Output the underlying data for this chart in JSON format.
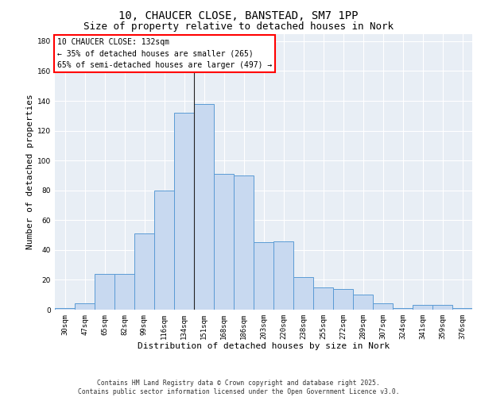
{
  "title1": "10, CHAUCER CLOSE, BANSTEAD, SM7 1PP",
  "title2": "Size of property relative to detached houses in Nork",
  "xlabel": "Distribution of detached houses by size in Nork",
  "ylabel": "Number of detached properties",
  "categories": [
    "30sqm",
    "47sqm",
    "65sqm",
    "82sqm",
    "99sqm",
    "116sqm",
    "134sqm",
    "151sqm",
    "168sqm",
    "186sqm",
    "203sqm",
    "220sqm",
    "238sqm",
    "255sqm",
    "272sqm",
    "289sqm",
    "307sqm",
    "324sqm",
    "341sqm",
    "359sqm",
    "376sqm"
  ],
  "values": [
    1,
    4,
    24,
    24,
    51,
    80,
    132,
    138,
    91,
    90,
    45,
    46,
    22,
    15,
    14,
    10,
    4,
    1,
    3,
    3,
    1
  ],
  "bar_color": "#c8d9f0",
  "bar_edge_color": "#5b9bd5",
  "vline_x": 6.5,
  "annotation_text": "10 CHAUCER CLOSE: 132sqm\n← 35% of detached houses are smaller (265)\n65% of semi-detached houses are larger (497) →",
  "annotation_box_color": "white",
  "annotation_box_edge_color": "red",
  "ylim": [
    0,
    185
  ],
  "yticks": [
    0,
    20,
    40,
    60,
    80,
    100,
    120,
    140,
    160,
    180
  ],
  "background_color": "#e8eef5",
  "grid_color": "white",
  "footnote": "Contains HM Land Registry data © Crown copyright and database right 2025.\nContains public sector information licensed under the Open Government Licence v3.0.",
  "title_fontsize": 10,
  "subtitle_fontsize": 9,
  "axis_label_fontsize": 8,
  "tick_fontsize": 6.5,
  "annotation_fontsize": 7,
  "footnote_fontsize": 5.8
}
